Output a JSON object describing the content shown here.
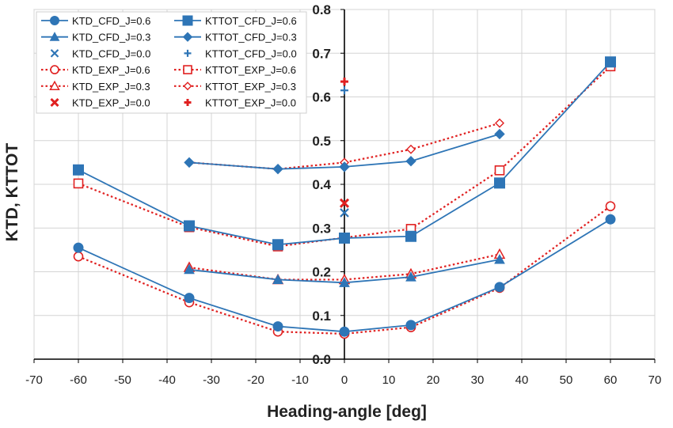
{
  "chart_data": {
    "type": "line",
    "xlabel": "Heading-angle [deg]",
    "ylabel": "KTD, KTTOT",
    "xlim": [
      -70,
      70
    ],
    "ylim": [
      0.0,
      0.8
    ],
    "xticks": [
      -70,
      -60,
      -50,
      -40,
      -30,
      -20,
      -10,
      0,
      10,
      20,
      30,
      40,
      50,
      60,
      70
    ],
    "yticks": [
      0.0,
      0.1,
      0.2,
      0.3,
      0.4,
      0.5,
      0.6,
      0.7,
      0.8
    ],
    "ytick_labels": [
      "0.0",
      "0.1",
      "0.2",
      "0.3",
      "0.4",
      "0.5",
      "0.6",
      "0.7",
      "0.8"
    ],
    "grid": true,
    "legend_position": "top-left",
    "colors": {
      "cfd": "#2e75b6",
      "exp": "#e02020"
    },
    "series": [
      {
        "name": "KTD_CFD_J=0.6",
        "marker": "circle-filled",
        "color": "#2e75b6",
        "line": "solid",
        "x": [
          -60,
          -35,
          -15,
          0,
          15,
          35,
          60
        ],
        "y": [
          0.255,
          0.14,
          0.075,
          0.063,
          0.078,
          0.165,
          0.32
        ]
      },
      {
        "name": "KTD_CFD_J=0.3",
        "marker": "triangle-filled",
        "color": "#2e75b6",
        "line": "solid",
        "x": [
          -35,
          -15,
          0,
          15,
          35
        ],
        "y": [
          0.205,
          0.182,
          0.175,
          0.188,
          0.228
        ]
      },
      {
        "name": "KTD_CFD_J=0.0",
        "marker": "x",
        "color": "#2e75b6",
        "line": "none",
        "x": [
          0
        ],
        "y": [
          0.335
        ]
      },
      {
        "name": "KTD_EXP_J=0.6",
        "marker": "circle-open",
        "color": "#e02020",
        "line": "dotted",
        "x": [
          -60,
          -35,
          -15,
          0,
          15,
          35,
          60
        ],
        "y": [
          0.235,
          0.13,
          0.063,
          0.058,
          0.073,
          0.163,
          0.35
        ]
      },
      {
        "name": "KTD_EXP_J=0.3",
        "marker": "triangle-open",
        "color": "#e02020",
        "line": "dotted",
        "x": [
          -35,
          -15,
          0,
          15,
          35
        ],
        "y": [
          0.21,
          0.182,
          0.182,
          0.195,
          0.24
        ]
      },
      {
        "name": "KTD_EXP_J=0.0",
        "marker": "x-bold",
        "color": "#e02020",
        "line": "none",
        "x": [
          0
        ],
        "y": [
          0.357
        ]
      },
      {
        "name": "KTTOT_CFD_J=0.6",
        "marker": "square-filled",
        "color": "#2e75b6",
        "line": "solid",
        "x": [
          -60,
          -35,
          -15,
          0,
          15,
          35,
          60
        ],
        "y": [
          0.433,
          0.305,
          0.262,
          0.277,
          0.281,
          0.403,
          0.68
        ]
      },
      {
        "name": "KTTOT_CFD_J=0.3",
        "marker": "diamond-filled",
        "color": "#2e75b6",
        "line": "solid",
        "x": [
          -35,
          -15,
          0,
          15,
          35
        ],
        "y": [
          0.45,
          0.435,
          0.44,
          0.453,
          0.515
        ]
      },
      {
        "name": "KTTOT_CFD_J=0.0",
        "marker": "plus",
        "color": "#2e75b6",
        "line": "none",
        "x": [
          0
        ],
        "y": [
          0.615
        ]
      },
      {
        "name": "KTTOT_EXP_J=0.6",
        "marker": "square-open",
        "color": "#e02020",
        "line": "dotted",
        "x": [
          -60,
          -35,
          -15,
          0,
          15,
          35,
          60
        ],
        "y": [
          0.402,
          0.302,
          0.258,
          0.278,
          0.298,
          0.432,
          0.67
        ]
      },
      {
        "name": "KTTOT_EXP_J=0.3",
        "marker": "diamond-open",
        "color": "#e02020",
        "line": "dotted",
        "x": [
          -35,
          -15,
          0,
          15,
          35
        ],
        "y": [
          0.45,
          0.435,
          0.45,
          0.48,
          0.54
        ]
      },
      {
        "name": "KTTOT_EXP_J=0.0",
        "marker": "plus-bold",
        "color": "#e02020",
        "line": "none",
        "x": [
          0
        ],
        "y": [
          0.635
        ]
      }
    ]
  }
}
